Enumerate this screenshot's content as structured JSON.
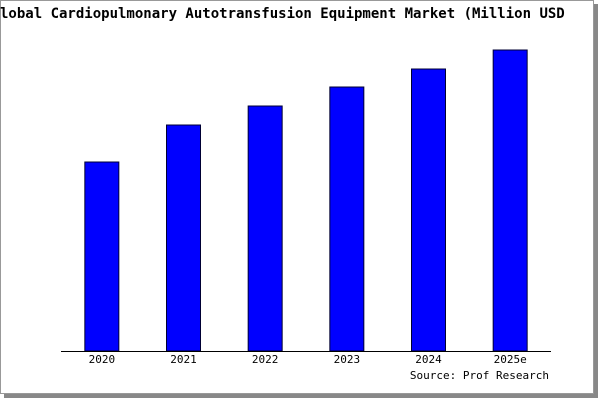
{
  "chart_data": {
    "type": "bar",
    "title": "lobal Cardiopulmonary Autotransfusion Equipment Market (Million USD",
    "categories": [
      "2020",
      "2021",
      "2022",
      "2023",
      "2024",
      "2025e"
    ],
    "values": [
      189,
      226,
      245,
      264,
      282,
      301
    ],
    "color": "#0000ff",
    "source": "Source: Prof Research"
  }
}
